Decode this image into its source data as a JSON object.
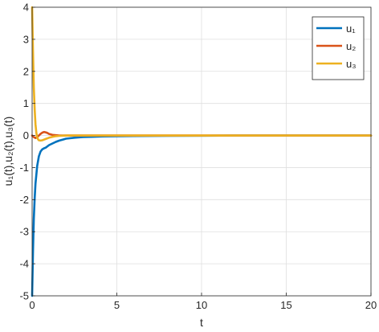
{
  "chart_data": {
    "type": "line",
    "title": "",
    "xlabel": "t",
    "ylabel": "u₁(t),u₂(t),u₃(t)",
    "xlim": [
      0,
      20
    ],
    "ylim": [
      -5,
      4
    ],
    "xticks": [
      0,
      5,
      10,
      15,
      20
    ],
    "yticks": [
      -5,
      -4,
      -3,
      -2,
      -1,
      0,
      1,
      2,
      3,
      4
    ],
    "grid": true,
    "legend_position": "top-right",
    "series": [
      {
        "name": "u₁",
        "color": "#0072BD",
        "x": [
          0,
          0.05,
          0.1,
          0.15,
          0.2,
          0.3,
          0.4,
          0.5,
          0.6,
          0.7,
          0.8,
          0.9,
          1.0,
          1.2,
          1.4,
          1.6,
          1.8,
          2.0,
          2.5,
          3.0,
          3.5,
          4.0,
          5.0,
          6.0,
          8.0,
          10.0,
          12.0,
          15.0,
          20.0
        ],
        "y": [
          -5.0,
          -3.6,
          -2.6,
          -1.95,
          -1.5,
          -0.95,
          -0.65,
          -0.5,
          -0.43,
          -0.4,
          -0.38,
          -0.34,
          -0.3,
          -0.25,
          -0.2,
          -0.16,
          -0.13,
          -0.1,
          -0.07,
          -0.05,
          -0.04,
          -0.03,
          -0.02,
          -0.015,
          -0.01,
          -0.005,
          0,
          0,
          0
        ]
      },
      {
        "name": "u₂",
        "color": "#D95319",
        "x": [
          0,
          0.1,
          0.2,
          0.3,
          0.4,
          0.5,
          0.6,
          0.7,
          0.8,
          0.9,
          1.0,
          1.2,
          1.4,
          1.6,
          1.8,
          2.0,
          2.5,
          3.0,
          4.0,
          5.0,
          10.0,
          15.0,
          20.0
        ],
        "y": [
          0,
          -0.05,
          -0.08,
          -0.05,
          0,
          0.05,
          0.09,
          0.11,
          0.1,
          0.08,
          0.05,
          0.02,
          0.01,
          0,
          0,
          0,
          0,
          0,
          0,
          0,
          0,
          0,
          0
        ]
      },
      {
        "name": "u₃",
        "color": "#EDB120",
        "x": [
          0,
          0.05,
          0.1,
          0.15,
          0.2,
          0.25,
          0.3,
          0.35,
          0.4,
          0.5,
          0.6,
          0.7,
          0.8,
          1.0,
          1.2,
          1.4,
          1.6,
          2.0,
          2.5,
          3.0,
          4.0,
          5.0,
          10.0,
          15.0,
          20.0
        ],
        "y": [
          4.0,
          2.6,
          1.5,
          0.8,
          0.35,
          0.08,
          -0.06,
          -0.12,
          -0.15,
          -0.16,
          -0.15,
          -0.13,
          -0.11,
          -0.07,
          -0.04,
          -0.02,
          -0.01,
          0,
          0,
          0,
          0,
          0,
          0,
          0,
          0
        ]
      }
    ]
  }
}
